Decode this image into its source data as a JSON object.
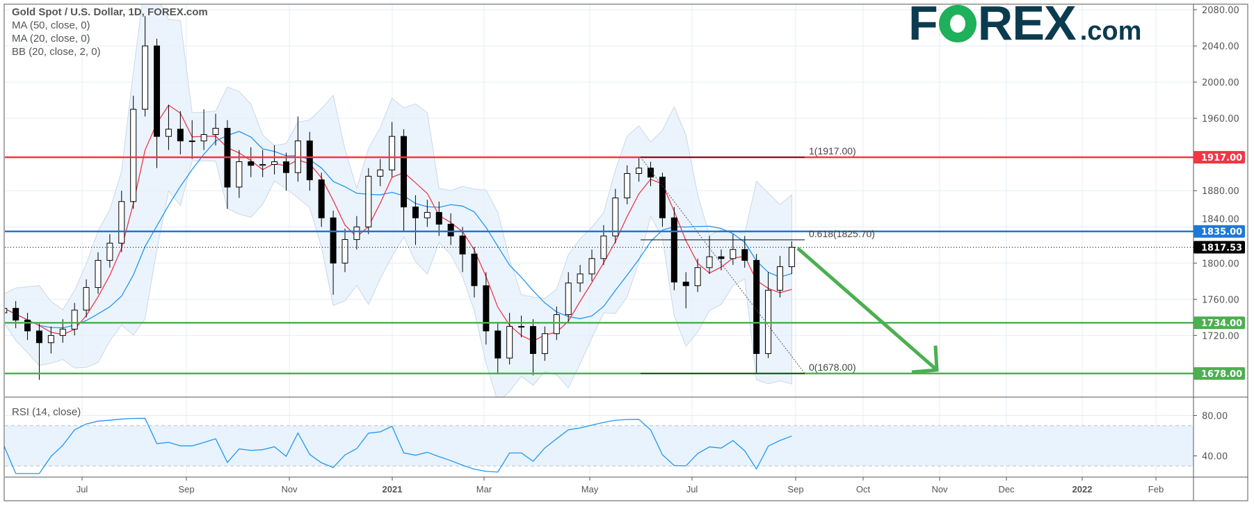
{
  "legend": {
    "title": "Gold Spot / U.S. Dollar, 1D, FOREX.com",
    "indicators": [
      "MA (50, close, 0)",
      "MA (20, close, 0)",
      "BB (20, close, 2, 0)"
    ]
  },
  "rsi_label": "RSI (14, close)",
  "logo": {
    "left": "F",
    "right": "REX",
    "suffix": ".com",
    "full": "FOREX.com"
  },
  "colors": {
    "ma50": "#2196f3",
    "ma20": "#f23645",
    "bb_fill": "#e3f0fc",
    "bb_line": "#c9d8e6",
    "resistance": "#f23645",
    "pivot": "#1e78d6",
    "support": "#4caf50",
    "rsi": "#2196f3",
    "candle_up": "#ffffff",
    "candle_down": "#000000",
    "arrow": "#4caf50"
  },
  "chart_data": [
    {
      "type": "candlestick",
      "title": "Gold Spot / U.S. Dollar, 1D, FOREX.com",
      "ylim": [
        1660,
        2085
      ],
      "y_ticks": [
        "2080.00",
        "2040.00",
        "2000.00",
        "1960.00",
        "1880.00",
        "1840.00",
        "1800.00",
        "1760.00",
        "1720.00"
      ],
      "x_ticks": [
        "Jul",
        "Sep",
        "Nov",
        "2021",
        "Mar",
        "May",
        "Jul",
        "Sep",
        "Oct",
        "Nov",
        "Dec",
        "2022",
        "Feb"
      ],
      "grid": true,
      "candles": [
        [
          "2020-05-18",
          1745,
          1762,
          1738,
          1750
        ],
        [
          "2020-05-25",
          1750,
          1758,
          1728,
          1737
        ],
        [
          "2020-06-01",
          1737,
          1745,
          1715,
          1725
        ],
        [
          "2020-06-08",
          1725,
          1733,
          1671,
          1712
        ],
        [
          "2020-06-15",
          1712,
          1730,
          1700,
          1720
        ],
        [
          "2020-06-22",
          1720,
          1738,
          1712,
          1727
        ],
        [
          "2020-06-29",
          1727,
          1756,
          1720,
          1748
        ],
        [
          "2020-07-06",
          1748,
          1782,
          1740,
          1773
        ],
        [
          "2020-07-13",
          1773,
          1812,
          1766,
          1803
        ],
        [
          "2020-07-20",
          1803,
          1832,
          1795,
          1822
        ],
        [
          "2020-07-27",
          1822,
          1880,
          1812,
          1868
        ],
        [
          "2020-08-03",
          1868,
          1985,
          1860,
          1970
        ],
        [
          "2020-08-10",
          1970,
          2073,
          1962,
          2040
        ],
        [
          "2020-08-17",
          2040,
          2048,
          1905,
          1940
        ],
        [
          "2020-08-24",
          1940,
          1975,
          1925,
          1948
        ],
        [
          "2020-08-31",
          1948,
          1968,
          1920,
          1935
        ],
        [
          "2020-09-07",
          1935,
          1958,
          1915,
          1935
        ],
        [
          "2020-09-14",
          1935,
          1970,
          1925,
          1942
        ],
        [
          "2020-09-21",
          1942,
          1965,
          1930,
          1949
        ],
        [
          "2020-09-28",
          1949,
          1958,
          1860,
          1884
        ],
        [
          "2020-10-05",
          1884,
          1925,
          1872,
          1912
        ],
        [
          "2020-10-12",
          1912,
          1928,
          1895,
          1908
        ],
        [
          "2020-10-19",
          1908,
          1925,
          1895,
          1909
        ],
        [
          "2020-10-26",
          1909,
          1930,
          1898,
          1912
        ],
        [
          "2020-11-02",
          1912,
          1922,
          1880,
          1900
        ],
        [
          "2020-11-09",
          1900,
          1962,
          1890,
          1935
        ],
        [
          "2020-11-16",
          1935,
          1945,
          1880,
          1892
        ],
        [
          "2020-11-23",
          1892,
          1900,
          1840,
          1850
        ],
        [
          "2020-11-30",
          1850,
          1858,
          1765,
          1800
        ],
        [
          "2020-12-07",
          1800,
          1838,
          1790,
          1826
        ],
        [
          "2020-12-14",
          1826,
          1852,
          1815,
          1840
        ],
        [
          "2020-12-21",
          1840,
          1905,
          1832,
          1896
        ],
        [
          "2020-12-28",
          1896,
          1915,
          1885,
          1903
        ],
        [
          "2021-01-04",
          1903,
          1956,
          1895,
          1940
        ],
        [
          "2021-01-11",
          1940,
          1948,
          1835,
          1862
        ],
        [
          "2021-01-18",
          1862,
          1875,
          1820,
          1850
        ],
        [
          "2021-01-25",
          1850,
          1870,
          1840,
          1856
        ],
        [
          "2021-02-01",
          1856,
          1868,
          1830,
          1843
        ],
        [
          "2021-02-08",
          1843,
          1855,
          1820,
          1830
        ],
        [
          "2021-02-15",
          1830,
          1840,
          1790,
          1810
        ],
        [
          "2021-02-22",
          1810,
          1818,
          1762,
          1775
        ],
        [
          "2021-03-01",
          1775,
          1790,
          1710,
          1725
        ],
        [
          "2021-03-08",
          1725,
          1735,
          1677,
          1695
        ],
        [
          "2021-03-15",
          1695,
          1745,
          1688,
          1730
        ],
        [
          "2021-03-22",
          1730,
          1742,
          1718,
          1730
        ],
        [
          "2021-03-29",
          1730,
          1738,
          1676,
          1700
        ],
        [
          "2021-04-05",
          1700,
          1730,
          1692,
          1722
        ],
        [
          "2021-04-12",
          1722,
          1752,
          1715,
          1743
        ],
        [
          "2021-04-19",
          1743,
          1790,
          1735,
          1778
        ],
        [
          "2021-04-26",
          1778,
          1798,
          1768,
          1788
        ],
        [
          "2021-05-03",
          1788,
          1815,
          1780,
          1805
        ],
        [
          "2021-05-10",
          1805,
          1842,
          1798,
          1830
        ],
        [
          "2021-05-17",
          1830,
          1882,
          1822,
          1872
        ],
        [
          "2021-05-24",
          1872,
          1908,
          1865,
          1899
        ],
        [
          "2021-05-31",
          1899,
          1916,
          1890,
          1905
        ],
        [
          "2021-06-07",
          1905,
          1912,
          1885,
          1895
        ],
        [
          "2021-06-14",
          1895,
          1900,
          1840,
          1850
        ],
        [
          "2021-06-21",
          1850,
          1862,
          1770,
          1779
        ],
        [
          "2021-06-28",
          1779,
          1790,
          1750,
          1775
        ],
        [
          "2021-07-05",
          1775,
          1805,
          1768,
          1795
        ],
        [
          "2021-07-12",
          1795,
          1830,
          1788,
          1807
        ],
        [
          "2021-07-19",
          1807,
          1815,
          1792,
          1805
        ],
        [
          "2021-07-26",
          1805,
          1832,
          1798,
          1815
        ],
        [
          "2021-08-02",
          1815,
          1830,
          1795,
          1803
        ],
        [
          "2021-08-09",
          1803,
          1810,
          1678,
          1700
        ],
        [
          "2021-08-16",
          1700,
          1790,
          1695,
          1770
        ],
        [
          "2021-08-23",
          1770,
          1808,
          1762,
          1796
        ],
        [
          "2021-08-30",
          1796,
          1824,
          1788,
          1817.53
        ]
      ],
      "last_price": "1817.53",
      "levels": [
        {
          "value": 1917.0,
          "label": "1917.00",
          "role": "resistance"
        },
        {
          "value": 1835.0,
          "label": "1835.00",
          "role": "pivot"
        },
        {
          "value": 1734.0,
          "label": "1734.00",
          "role": "support"
        },
        {
          "value": 1678.0,
          "label": "1678.00",
          "role": "support"
        }
      ],
      "fibonacci": [
        {
          "ratio": 1,
          "value": 1917.0,
          "label": "1(1917.00)"
        },
        {
          "ratio": 0.618,
          "value": 1825.7,
          "label": "0.618(1825.70)"
        },
        {
          "ratio": 0,
          "value": 1678.0,
          "label": "0(1678.00)"
        }
      ],
      "arrow": {
        "from_date": "2021-08-30",
        "from_price": 1820,
        "to_date": "2021-11-01",
        "to_price": 1678,
        "direction": "down"
      }
    },
    {
      "type": "line",
      "title": "RSI (14, close)",
      "ylim": [
        15,
        98
      ],
      "y_ticks": [
        "80.00",
        "40.00"
      ],
      "bands": [
        70,
        30
      ]
    }
  ]
}
